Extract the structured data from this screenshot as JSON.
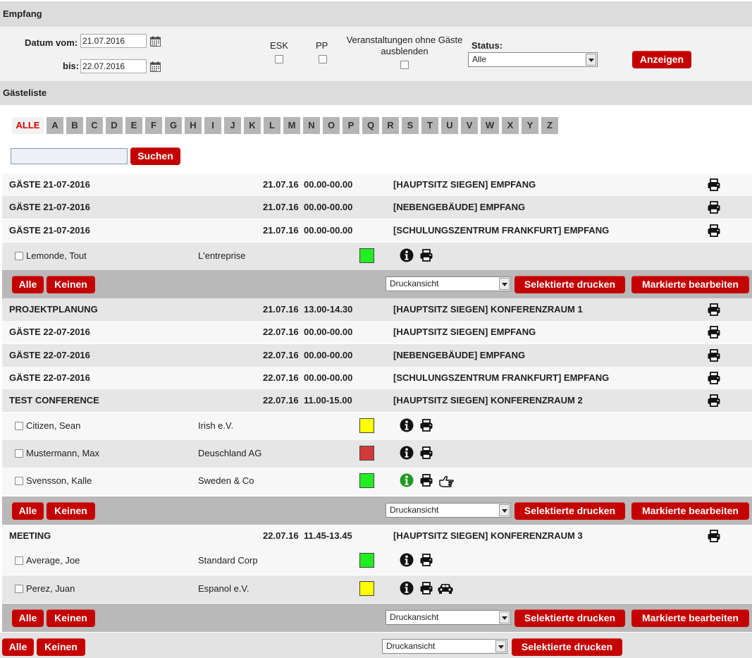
{
  "empfang_title": "Empfang",
  "filter": {
    "datum_vom_label": "Datum vom:",
    "datum_vom_value": "21.07.2016",
    "bis_label": "bis:",
    "bis_value": "22.07.2016",
    "esk_label": "ESK",
    "pp_label": "PP",
    "ohne_gaeste_label_1": "Veranstaltungen ohne Gäste",
    "ohne_gaeste_label_2": "ausblenden",
    "status_label": "Status:",
    "status_value": "Alle",
    "anzeigen_label": "Anzeigen"
  },
  "gaesteliste_title": "Gästeliste",
  "alphabet": [
    "ALLE",
    "A",
    "B",
    "C",
    "D",
    "E",
    "F",
    "G",
    "H",
    "I",
    "J",
    "K",
    "L",
    "M",
    "N",
    "O",
    "P",
    "Q",
    "R",
    "S",
    "T",
    "U",
    "V",
    "W",
    "X",
    "Y",
    "Z"
  ],
  "search": {
    "button_label": "Suchen"
  },
  "events": [
    {
      "title": "GÄSTE 21-07-2016",
      "date": "21.07.16",
      "time": "00.00-00.00",
      "location": "[HAUPTSITZ SIEGEN] EMPFANG"
    },
    {
      "title": "GÄSTE 21-07-2016",
      "date": "21.07.16",
      "time": "00.00-00.00",
      "location": "[NEBENGEBÄUDE] EMPFANG"
    },
    {
      "title": "GÄSTE 21-07-2016",
      "date": "21.07.16",
      "time": "00.00-00.00",
      "location": "[SCHULUNGSZENTRUM FRANKFURT] EMPFANG"
    },
    {
      "title": "PROJEKTPLANUNG",
      "date": "21.07.16",
      "time": "13.00-14.30",
      "location": "[HAUPTSITZ SIEGEN] KONFERENZRAUM 1"
    },
    {
      "title": "GÄSTE 22-07-2016",
      "date": "22.07.16",
      "time": "00.00-00.00",
      "location": "[HAUPTSITZ SIEGEN] EMPFANG"
    },
    {
      "title": "GÄSTE 22-07-2016",
      "date": "22.07.16",
      "time": "00.00-00.00",
      "location": "[NEBENGEBÄUDE] EMPFANG"
    },
    {
      "title": "GÄSTE 22-07-2016",
      "date": "22.07.16",
      "time": "00.00-00.00",
      "location": "[SCHULUNGSZENTRUM FRANKFURT] EMPFANG"
    },
    {
      "title": "TEST CONFERENCE",
      "date": "22.07.16",
      "time": "11.00-15.00",
      "location": "[HAUPTSITZ SIEGEN] KONFERENZRAUM 2"
    },
    {
      "title": "MEETING",
      "date": "22.07.16",
      "time": "11.45-13.45",
      "location": "[HAUPTSITZ SIEGEN] KONFERENZRAUM 3"
    }
  ],
  "guests": [
    {
      "name": "Lemonde, Tout",
      "company": "L'entreprise",
      "status_color": "#22ee22",
      "info_icon": "info-icon",
      "extra_icon": ""
    },
    {
      "name": "Citizen, Sean",
      "company": "Irish e.V.",
      "status_color": "#ffff00",
      "info_icon": "info-icon",
      "extra_icon": ""
    },
    {
      "name": "Mustermann, Max",
      "company": "Deuschland AG",
      "status_color": "#d33a3a",
      "info_icon": "info-icon",
      "extra_icon": ""
    },
    {
      "name": "Svensson, Kalle",
      "company": "Sweden & Co",
      "status_color": "#22ee22",
      "info_icon": "info-green-icon",
      "extra_icon": "pointing-hand-icon"
    },
    {
      "name": "Average, Joe",
      "company": "Standard Corp",
      "status_color": "#22ee22",
      "info_icon": "info-icon",
      "extra_icon": ""
    },
    {
      "name": "Perez, Juan",
      "company": "Espanol e.V.",
      "status_color": "#ffff00",
      "info_icon": "info-icon",
      "extra_icon": "car-icon"
    }
  ],
  "actions": {
    "alle_label": "Alle",
    "keinen_label": "Keinen",
    "druckansicht_value": "Druckansicht",
    "selektierte_drucken_label": "Selektierte drucken",
    "markierte_bearbeiten_label": "Markierte bearbeiten"
  }
}
